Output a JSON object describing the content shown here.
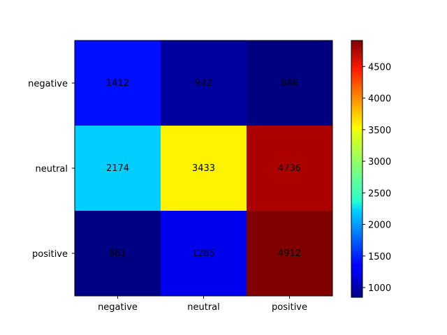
{
  "chart_data": {
    "type": "heatmap",
    "title": "",
    "xlabel": "",
    "ylabel": "",
    "x_categories": [
      "negative",
      "neutral",
      "positive"
    ],
    "y_categories": [
      "negative",
      "neutral",
      "positive"
    ],
    "values": [
      [
        1412,
        972,
        846
      ],
      [
        2174,
        3433,
        4736
      ],
      [
        861,
        1285,
        4912
      ]
    ],
    "colormap": "jet",
    "color_range": [
      846,
      4912
    ],
    "colorbar_ticks": [
      1000,
      1500,
      2000,
      2500,
      3000,
      3500,
      4000,
      4500
    ],
    "grid": false
  }
}
